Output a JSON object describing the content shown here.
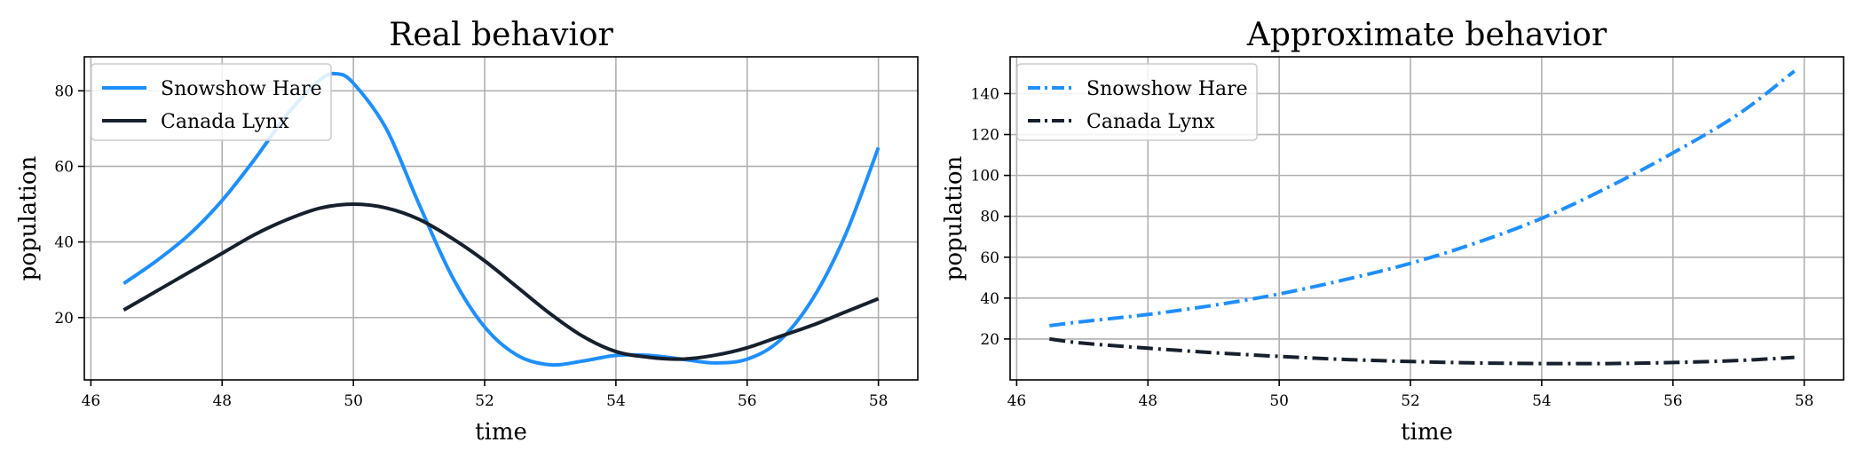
{
  "chart_data": [
    {
      "type": "line",
      "title": "Real behavior",
      "xlabel": "time",
      "ylabel": "population",
      "xlim": [
        45.9,
        58.6
      ],
      "ylim": [
        3.5,
        89
      ],
      "xticks": [
        46,
        48,
        50,
        52,
        54,
        56,
        58
      ],
      "yticks": [
        20,
        40,
        60,
        80
      ],
      "grid": true,
      "legend": "top-left",
      "series": [
        {
          "name": "Snowshow Hare",
          "color": "#1f8fff",
          "style": "solid",
          "x": [
            46.5,
            47.0,
            47.5,
            48.0,
            48.5,
            49.0,
            49.5,
            49.75,
            50.0,
            50.5,
            51.0,
            51.5,
            52.0,
            52.5,
            53.0,
            53.5,
            54.0,
            54.5,
            55.0,
            55.5,
            56.0,
            56.5,
            57.0,
            57.5,
            58.0
          ],
          "y": [
            29,
            35,
            42,
            51,
            62,
            74,
            83,
            84.5,
            82,
            70,
            50,
            31,
            17.5,
            10,
            7.5,
            8.5,
            10,
            10,
            9,
            8,
            9,
            14,
            25,
            42,
            65
          ]
        },
        {
          "name": "Canada Lynx",
          "color": "#16202e",
          "style": "solid",
          "x": [
            46.5,
            47.0,
            47.5,
            48.0,
            48.5,
            49.0,
            49.5,
            50.0,
            50.5,
            51.0,
            51.5,
            52.0,
            52.5,
            53.0,
            53.5,
            54.0,
            54.5,
            55.0,
            55.5,
            56.0,
            56.5,
            57.0,
            57.5,
            58.0
          ],
          "y": [
            22,
            27,
            32,
            37,
            42,
            46,
            49,
            50,
            49,
            46,
            41,
            35,
            28,
            21,
            15,
            11,
            9.5,
            9,
            10,
            12,
            15,
            18,
            21.5,
            25
          ]
        }
      ]
    },
    {
      "type": "line",
      "title": "Approximate behavior",
      "xlabel": "time",
      "ylabel": "population",
      "xlim": [
        45.9,
        58.6
      ],
      "ylim": [
        0,
        158
      ],
      "xticks": [
        46,
        48,
        50,
        52,
        54,
        56,
        58
      ],
      "yticks": [
        20,
        40,
        60,
        80,
        100,
        120,
        140
      ],
      "grid": true,
      "legend": "top-left",
      "series": [
        {
          "name": "Snowshow Hare",
          "color": "#1f8fff",
          "style": "dashdot",
          "x": [
            46.5,
            47,
            48,
            49,
            50,
            51,
            52,
            53,
            54,
            55,
            56,
            57,
            57.85
          ],
          "y": [
            26.5,
            28.5,
            32,
            36.5,
            42,
            49,
            57,
            67,
            79,
            94,
            111,
            130,
            151
          ]
        },
        {
          "name": "Canada Lynx",
          "color": "#16202e",
          "style": "dashdot",
          "x": [
            46.5,
            47,
            48,
            49,
            50,
            51,
            52,
            53,
            54,
            55,
            56,
            57,
            57.85
          ],
          "y": [
            20,
            18,
            15.5,
            13.3,
            11.5,
            10,
            9,
            8.3,
            8,
            8,
            8.5,
            9.5,
            11
          ]
        }
      ]
    }
  ]
}
